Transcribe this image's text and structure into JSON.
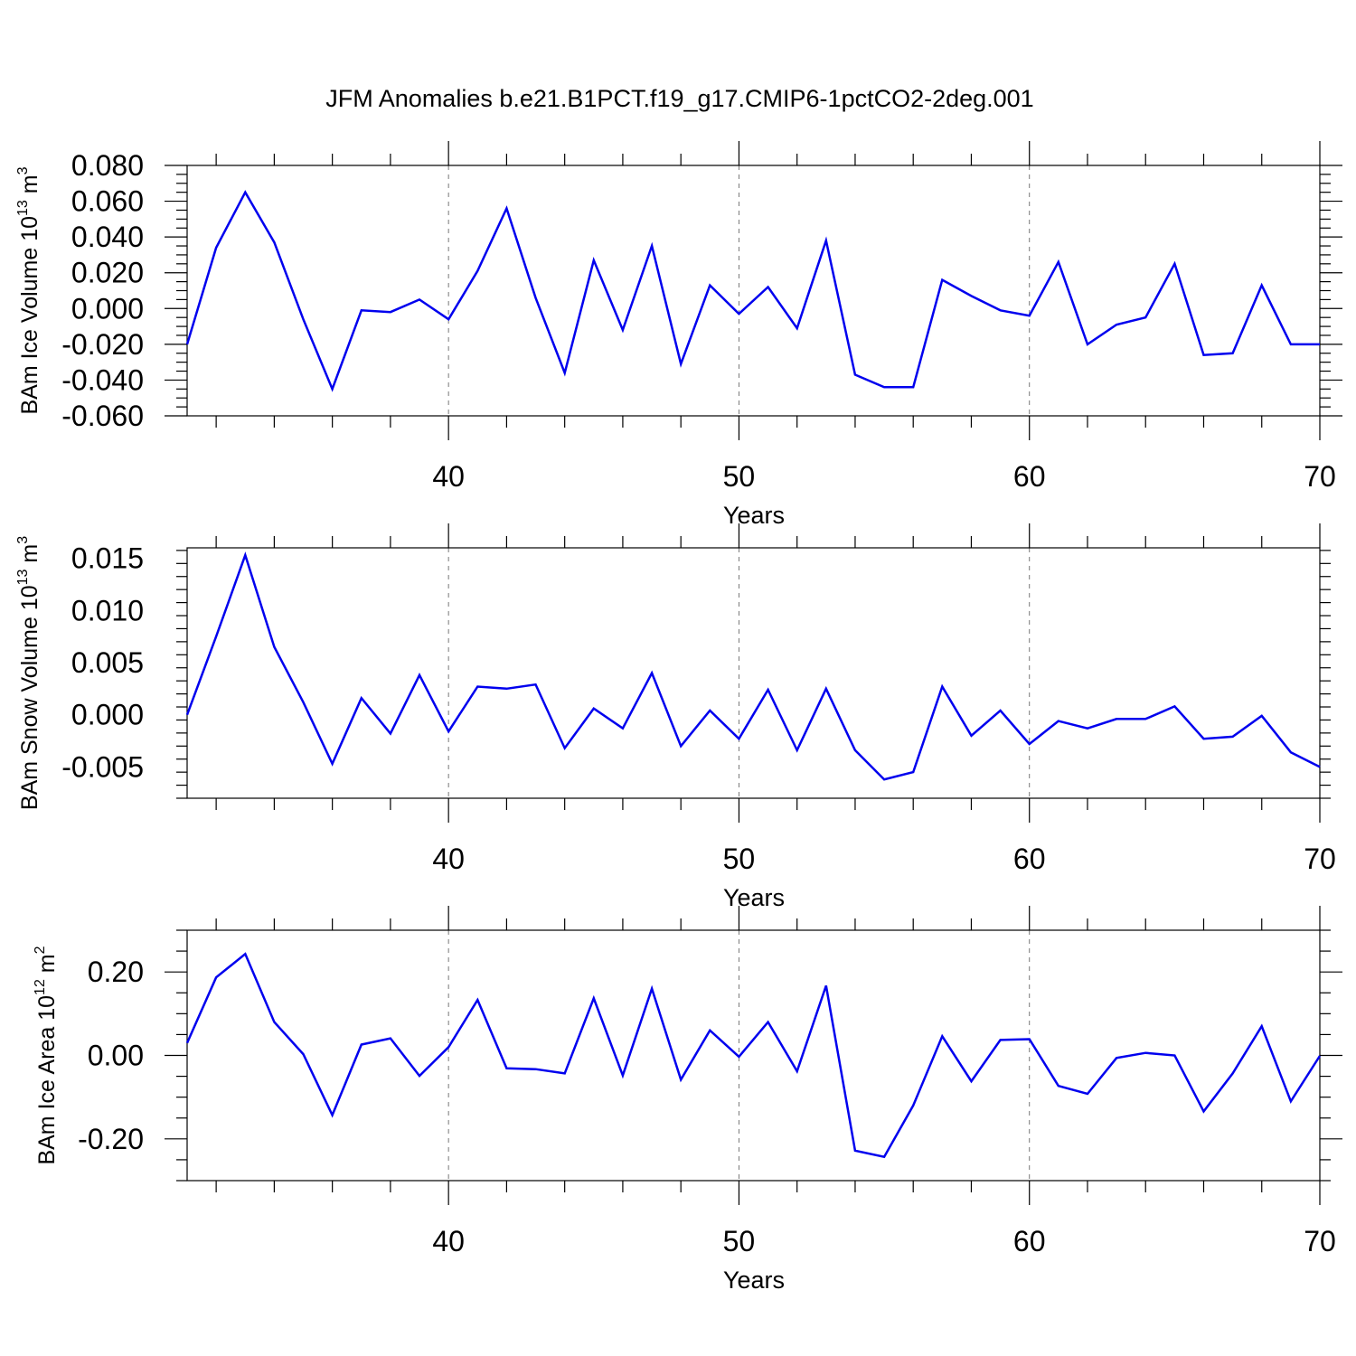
{
  "figure": {
    "title": "JFM Anomalies b.e21.B1PCT.f19_g17.CMIP6-1pctCO2-2deg.001",
    "line_color": "#0000ee"
  },
  "chart_data": [
    {
      "type": "line",
      "title": "",
      "xlabel": "Years",
      "ylabel": "BAm Ice Volume 10",
      "ylabel_sup": "13",
      "ylabel_unit": " m",
      "ylabel_unit_sup": "3",
      "xlim": [
        31,
        70
      ],
      "ylim": [
        -0.06,
        0.08
      ],
      "xticks": [
        40,
        50,
        60,
        70
      ],
      "xtick_labels": [
        "40",
        "50",
        "60",
        "70"
      ],
      "yticks": [
        -0.06,
        -0.04,
        -0.02,
        0.0,
        0.02,
        0.04,
        0.06,
        0.08
      ],
      "ytick_labels": [
        "-0.060",
        "-0.040",
        "-0.020",
        "0.000",
        "0.020",
        "0.040",
        "0.060",
        "0.080"
      ],
      "grid_x": [
        40,
        50,
        60
      ],
      "series": [
        {
          "name": "BAm Ice Volume",
          "x": [
            31,
            32,
            33,
            34,
            35,
            36,
            37,
            38,
            39,
            40,
            41,
            42,
            43,
            44,
            45,
            46,
            47,
            48,
            49,
            50,
            51,
            52,
            53,
            54,
            55,
            56,
            57,
            58,
            59,
            60,
            61,
            62,
            63,
            64,
            65,
            66,
            67,
            68,
            69,
            70
          ],
          "values": [
            -0.02,
            0.034,
            0.065,
            0.037,
            -0.006,
            -0.045,
            -0.001,
            -0.002,
            0.005,
            -0.006,
            0.021,
            0.056,
            0.006,
            -0.036,
            0.027,
            -0.012,
            0.035,
            -0.031,
            0.013,
            -0.003,
            0.012,
            -0.011,
            0.038,
            -0.037,
            -0.044,
            -0.044,
            0.016,
            0.007,
            -0.001,
            -0.004,
            0.026,
            -0.02,
            -0.009,
            -0.005,
            0.025,
            -0.026,
            -0.025,
            0.013,
            -0.02,
            -0.02
          ]
        }
      ]
    },
    {
      "type": "line",
      "title": "",
      "xlabel": "Years",
      "ylabel": "BAm Snow Volume 10",
      "ylabel_sup": "13",
      "ylabel_unit": " m",
      "ylabel_unit_sup": "3",
      "xlim": [
        31,
        70
      ],
      "ylim": [
        -0.008,
        0.016
      ],
      "xticks": [
        40,
        50,
        60,
        70
      ],
      "xtick_labels": [
        "40",
        "50",
        "60",
        "70"
      ],
      "yticks": [
        -0.005,
        0.0,
        0.005,
        0.01,
        0.015
      ],
      "ytick_labels": [
        "-0.005",
        "0.000",
        "0.005",
        "0.010",
        "0.015"
      ],
      "grid_x": [
        40,
        50,
        60
      ],
      "series": [
        {
          "name": "BAm Snow Volume",
          "x": [
            31,
            32,
            33,
            34,
            35,
            36,
            37,
            38,
            39,
            40,
            41,
            42,
            43,
            44,
            45,
            46,
            47,
            48,
            49,
            50,
            51,
            52,
            53,
            54,
            55,
            56,
            57,
            58,
            59,
            60,
            61,
            62,
            63,
            64,
            65,
            66,
            67,
            68,
            69,
            70
          ],
          "values": [
            0.0,
            0.0075,
            0.0153,
            0.0065,
            0.0012,
            -0.0047,
            0.0016,
            -0.0018,
            0.0038,
            -0.0016,
            0.0027,
            0.0025,
            0.0029,
            -0.0032,
            0.0006,
            -0.0013,
            0.004,
            -0.003,
            0.0004,
            -0.0023,
            0.0024,
            -0.0034,
            0.0025,
            -0.0034,
            -0.0062,
            -0.0055,
            0.0027,
            -0.002,
            0.0004,
            -0.0028,
            -0.0006,
            -0.0013,
            -0.0004,
            -0.0004,
            0.0008,
            -0.0023,
            -0.0021,
            -0.0001,
            -0.0036,
            -0.005
          ]
        }
      ]
    },
    {
      "type": "line",
      "title": "",
      "xlabel": "Years",
      "ylabel": "BAm Ice Area 10",
      "ylabel_sup": "12",
      "ylabel_unit": " m",
      "ylabel_unit_sup": "2",
      "xlim": [
        31,
        70
      ],
      "ylim": [
        -0.3,
        0.3
      ],
      "xticks": [
        40,
        50,
        60,
        70
      ],
      "xtick_labels": [
        "40",
        "50",
        "60",
        "70"
      ],
      "yticks": [
        -0.2,
        0.0,
        0.2
      ],
      "ytick_labels": [
        "-0.20",
        "0.00",
        "0.20"
      ],
      "grid_x": [
        40,
        50,
        60
      ],
      "series": [
        {
          "name": "BAm Ice Area",
          "x": [
            31,
            32,
            33,
            34,
            35,
            36,
            37,
            38,
            39,
            40,
            41,
            42,
            43,
            44,
            45,
            46,
            47,
            48,
            49,
            50,
            51,
            52,
            53,
            54,
            55,
            56,
            57,
            58,
            59,
            60,
            61,
            62,
            63,
            64,
            65,
            66,
            67,
            68,
            69,
            70
          ],
          "values": [
            0.03,
            0.187,
            0.243,
            0.08,
            0.003,
            -0.143,
            0.026,
            0.041,
            -0.049,
            0.02,
            0.133,
            -0.031,
            -0.033,
            -0.043,
            0.137,
            -0.048,
            0.16,
            -0.058,
            0.06,
            -0.003,
            0.08,
            -0.038,
            0.167,
            -0.228,
            -0.243,
            -0.12,
            0.046,
            -0.062,
            0.037,
            0.039,
            -0.073,
            -0.092,
            -0.006,
            0.006,
            0.0,
            -0.134,
            -0.043,
            0.07,
            -0.11,
            -0.001
          ]
        }
      ]
    }
  ]
}
